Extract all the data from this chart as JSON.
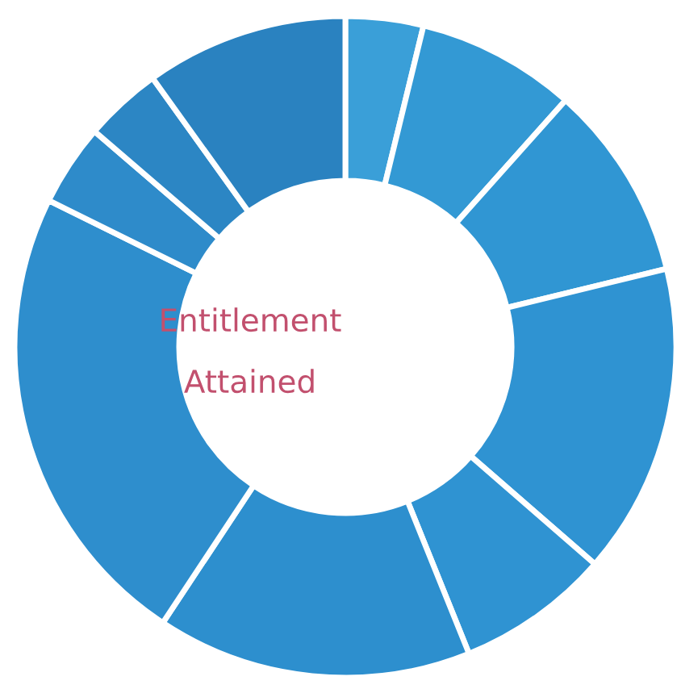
{
  "chart_data": {
    "type": "donut",
    "categories": [
      null,
      null,
      null,
      null,
      null,
      null,
      null,
      null,
      null,
      null
    ],
    "values": [
      3.8,
      7.8,
      9.6,
      15.2,
      7.5,
      15.4,
      23.0,
      4.0,
      3.8,
      9.9
    ],
    "colors": [
      "#3a9fd8",
      "#3399d4",
      "#3096d3",
      "#2f93d2",
      "#2f93d2",
      "#2d8fce",
      "#2e8ecd",
      "#2e8bca",
      "#2c86c4",
      "#2a82c0"
    ],
    "annotations": [
      "Entitlement",
      "Attained"
    ]
  }
}
